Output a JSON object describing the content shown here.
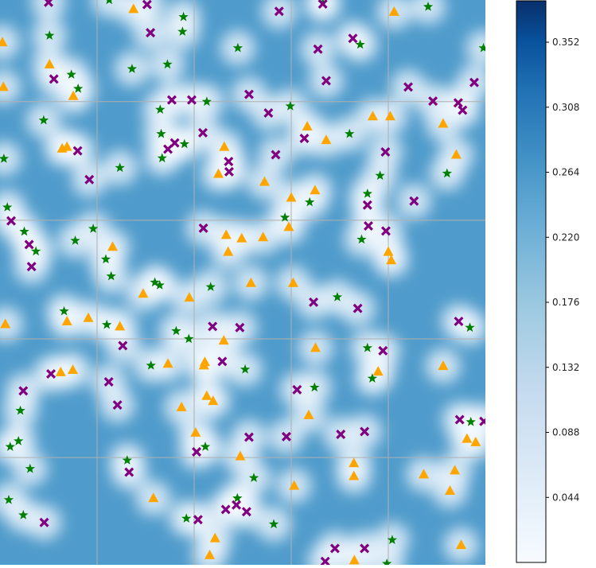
{
  "chart_data": {
    "type": "scatter",
    "background": "heatmap",
    "title": "",
    "xlabel": "",
    "ylabel": "",
    "xlim": [
      0,
      1
    ],
    "ylim": [
      0,
      1
    ],
    "grid": true,
    "colormap": "Blues",
    "colors": {
      "low": "#f7fbff",
      "mid": "#4f9bcb",
      "high": "#08306b",
      "triangle": "#ffa500",
      "star": "#008000",
      "cross": "#800080",
      "grid": "#b0b0b0"
    },
    "colorbar": {
      "ticks": [
        "0.044",
        "0.088",
        "0.132",
        "0.176",
        "0.220",
        "0.264",
        "0.308",
        "0.352"
      ],
      "tick_values": [
        0.044,
        0.088,
        0.132,
        0.176,
        0.22,
        0.264,
        0.308,
        0.352
      ],
      "range": [
        0.0,
        0.38
      ]
    },
    "series": [
      {
        "marker": "triangle",
        "color": "#ffa500",
        "points": [
          [
            0.005,
            0.925
          ],
          [
            0.007,
            0.846
          ],
          [
            0.102,
            0.886
          ],
          [
            0.128,
            0.737
          ],
          [
            0.151,
            0.83
          ],
          [
            0.275,
            0.984
          ],
          [
            0.138,
            0.74
          ],
          [
            0.462,
            0.74
          ],
          [
            0.45,
            0.692
          ],
          [
            0.545,
            0.678
          ],
          [
            0.498,
            0.578
          ],
          [
            0.466,
            0.584
          ],
          [
            0.542,
            0.58
          ],
          [
            0.595,
            0.598
          ],
          [
            0.633,
            0.776
          ],
          [
            0.672,
            0.752
          ],
          [
            0.649,
            0.663
          ],
          [
            0.768,
            0.794
          ],
          [
            0.804,
            0.794
          ],
          [
            0.812,
            0.979
          ],
          [
            0.913,
            0.781
          ],
          [
            0.94,
            0.726
          ],
          [
            0.232,
            0.563
          ],
          [
            0.8,
            0.554
          ],
          [
            0.806,
            0.539
          ],
          [
            0.47,
            0.554
          ],
          [
            0.517,
            0.499
          ],
          [
            0.604,
            0.499
          ],
          [
            0.295,
            0.48
          ],
          [
            0.39,
            0.473
          ],
          [
            0.182,
            0.437
          ],
          [
            0.138,
            0.431
          ],
          [
            0.247,
            0.422
          ],
          [
            0.011,
            0.426
          ],
          [
            0.461,
            0.397
          ],
          [
            0.65,
            0.384
          ],
          [
            0.42,
            0.353
          ],
          [
            0.422,
            0.359
          ],
          [
            0.346,
            0.356
          ],
          [
            0.15,
            0.345
          ],
          [
            0.125,
            0.341
          ],
          [
            0.779,
            0.342
          ],
          [
            0.913,
            0.352
          ],
          [
            0.426,
            0.299
          ],
          [
            0.439,
            0.29
          ],
          [
            0.374,
            0.279
          ],
          [
            0.636,
            0.265
          ],
          [
            0.403,
            0.234
          ],
          [
            0.495,
            0.192
          ],
          [
            0.729,
            0.18
          ],
          [
            0.729,
            0.157
          ],
          [
            0.606,
            0.14
          ],
          [
            0.873,
            0.16
          ],
          [
            0.937,
            0.167
          ],
          [
            0.927,
            0.131
          ],
          [
            0.962,
            0.223
          ],
          [
            0.98,
            0.217
          ],
          [
            0.316,
            0.118
          ],
          [
            0.443,
            0.047
          ],
          [
            0.432,
            0.017
          ],
          [
            0.73,
            0.008
          ],
          [
            0.95,
            0.035
          ],
          [
            0.6,
            0.65
          ]
        ]
      },
      {
        "marker": "star",
        "color": "#008000",
        "points": [
          [
            0.225,
            1.0
          ],
          [
            0.378,
            0.97
          ],
          [
            0.102,
            0.937
          ],
          [
            0.376,
            0.944
          ],
          [
            0.665,
            0.995
          ],
          [
            0.882,
            0.988
          ],
          [
            0.49,
            0.915
          ],
          [
            0.742,
            0.921
          ],
          [
            0.996,
            0.915
          ],
          [
            0.272,
            0.878
          ],
          [
            0.147,
            0.868
          ],
          [
            0.161,
            0.843
          ],
          [
            0.345,
            0.886
          ],
          [
            0.33,
            0.806
          ],
          [
            0.426,
            0.82
          ],
          [
            0.598,
            0.812
          ],
          [
            0.09,
            0.787
          ],
          [
            0.332,
            0.763
          ],
          [
            0.38,
            0.745
          ],
          [
            0.72,
            0.763
          ],
          [
            0.247,
            0.703
          ],
          [
            0.334,
            0.72
          ],
          [
            0.008,
            0.719
          ],
          [
            0.783,
            0.689
          ],
          [
            0.921,
            0.693
          ],
          [
            0.757,
            0.657
          ],
          [
            0.638,
            0.642
          ],
          [
            0.015,
            0.633
          ],
          [
            0.05,
            0.59
          ],
          [
            0.192,
            0.595
          ],
          [
            0.155,
            0.574
          ],
          [
            0.587,
            0.615
          ],
          [
            0.745,
            0.576
          ],
          [
            0.074,
            0.555
          ],
          [
            0.218,
            0.541
          ],
          [
            0.229,
            0.511
          ],
          [
            0.329,
            0.495
          ],
          [
            0.319,
            0.5
          ],
          [
            0.434,
            0.492
          ],
          [
            0.695,
            0.474
          ],
          [
            0.132,
            0.449
          ],
          [
            0.22,
            0.425
          ],
          [
            0.363,
            0.414
          ],
          [
            0.389,
            0.4
          ],
          [
            0.968,
            0.42
          ],
          [
            0.757,
            0.384
          ],
          [
            0.505,
            0.346
          ],
          [
            0.311,
            0.353
          ],
          [
            0.767,
            0.33
          ],
          [
            0.648,
            0.314
          ],
          [
            0.042,
            0.273
          ],
          [
            0.038,
            0.219
          ],
          [
            0.021,
            0.209
          ],
          [
            0.262,
            0.185
          ],
          [
            0.423,
            0.209
          ],
          [
            0.523,
            0.154
          ],
          [
            0.97,
            0.253
          ],
          [
            0.062,
            0.17
          ],
          [
            0.018,
            0.115
          ],
          [
            0.048,
            0.088
          ],
          [
            0.489,
            0.118
          ],
          [
            0.384,
            0.082
          ],
          [
            0.564,
            0.072
          ],
          [
            0.808,
            0.044
          ],
          [
            0.797,
            0.002
          ]
        ]
      },
      {
        "marker": "cross",
        "color": "#800080",
        "points": [
          [
            0.1,
            0.996
          ],
          [
            0.303,
            0.992
          ],
          [
            0.575,
            0.98
          ],
          [
            0.665,
            0.993
          ],
          [
            0.31,
            0.942
          ],
          [
            0.727,
            0.932
          ],
          [
            0.111,
            0.86
          ],
          [
            0.655,
            0.913
          ],
          [
            0.672,
            0.857
          ],
          [
            0.841,
            0.846
          ],
          [
            0.977,
            0.854
          ],
          [
            0.892,
            0.821
          ],
          [
            0.944,
            0.818
          ],
          [
            0.953,
            0.805
          ],
          [
            0.354,
            0.823
          ],
          [
            0.395,
            0.823
          ],
          [
            0.513,
            0.833
          ],
          [
            0.553,
            0.8
          ],
          [
            0.36,
            0.747
          ],
          [
            0.346,
            0.736
          ],
          [
            0.418,
            0.765
          ],
          [
            0.16,
            0.733
          ],
          [
            0.184,
            0.682
          ],
          [
            0.471,
            0.714
          ],
          [
            0.568,
            0.726
          ],
          [
            0.627,
            0.755
          ],
          [
            0.794,
            0.731
          ],
          [
            0.472,
            0.696
          ],
          [
            0.853,
            0.644
          ],
          [
            0.757,
            0.637
          ],
          [
            0.759,
            0.6
          ],
          [
            0.795,
            0.591
          ],
          [
            0.419,
            0.596
          ],
          [
            0.023,
            0.609
          ],
          [
            0.06,
            0.567
          ],
          [
            0.065,
            0.528
          ],
          [
            0.646,
            0.465
          ],
          [
            0.737,
            0.454
          ],
          [
            0.945,
            0.431
          ],
          [
            0.438,
            0.422
          ],
          [
            0.494,
            0.42
          ],
          [
            0.253,
            0.388
          ],
          [
            0.789,
            0.379
          ],
          [
            0.458,
            0.36
          ],
          [
            0.105,
            0.338
          ],
          [
            0.048,
            0.308
          ],
          [
            0.224,
            0.324
          ],
          [
            0.242,
            0.283
          ],
          [
            0.612,
            0.31
          ],
          [
            0.947,
            0.257
          ],
          [
            0.997,
            0.254
          ],
          [
            0.702,
            0.231
          ],
          [
            0.751,
            0.236
          ],
          [
            0.59,
            0.227
          ],
          [
            0.513,
            0.226
          ],
          [
            0.405,
            0.2
          ],
          [
            0.266,
            0.164
          ],
          [
            0.465,
            0.098
          ],
          [
            0.487,
            0.106
          ],
          [
            0.508,
            0.094
          ],
          [
            0.408,
            0.08
          ],
          [
            0.091,
            0.075
          ],
          [
            0.69,
            0.029
          ],
          [
            0.751,
            0.029
          ],
          [
            0.67,
            0.006
          ]
        ]
      }
    ]
  }
}
